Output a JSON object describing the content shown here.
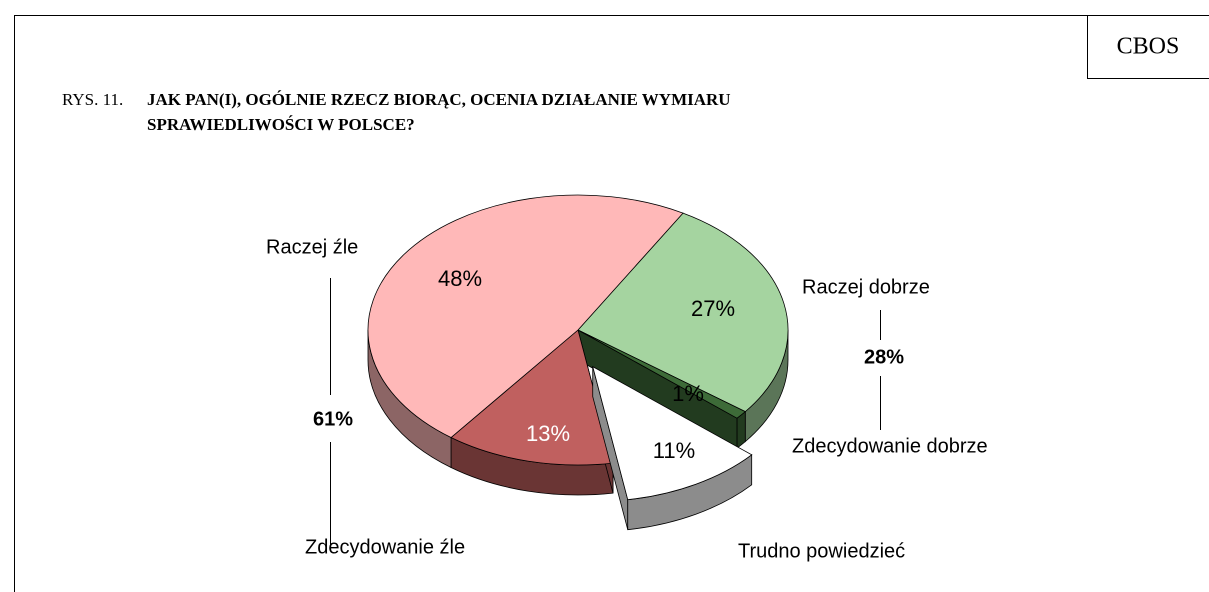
{
  "header": "CBOS",
  "chart_data": {
    "type": "pie",
    "figure_label": "RYS. 11.",
    "title_lines": [
      "JAK PAN(I), OGÓLNIE RZECZ BIORĄC, OCENIA DZIAŁANIE WYMIARU",
      "SPRAWIEDLIWOŚCI W POLSCE?"
    ],
    "categories": [
      "Raczej dobrze",
      "Zdecydowanie dobrze",
      "Trudno powiedzieć",
      "Zdecydowanie źle",
      "Raczej źle"
    ],
    "values": [
      27,
      1,
      11,
      13,
      48
    ],
    "value_labels": [
      "27%",
      "1%",
      "11%",
      "13%",
      "48%"
    ],
    "colors": [
      "#a5d4a0",
      "#3d6b38",
      "#ffffff",
      "#c0605f",
      "#ffb8b8"
    ],
    "exploded": [
      2
    ],
    "groups": [
      {
        "value": 28,
        "label": "28%"
      },
      {
        "value": 61,
        "label": "61%"
      }
    ]
  }
}
